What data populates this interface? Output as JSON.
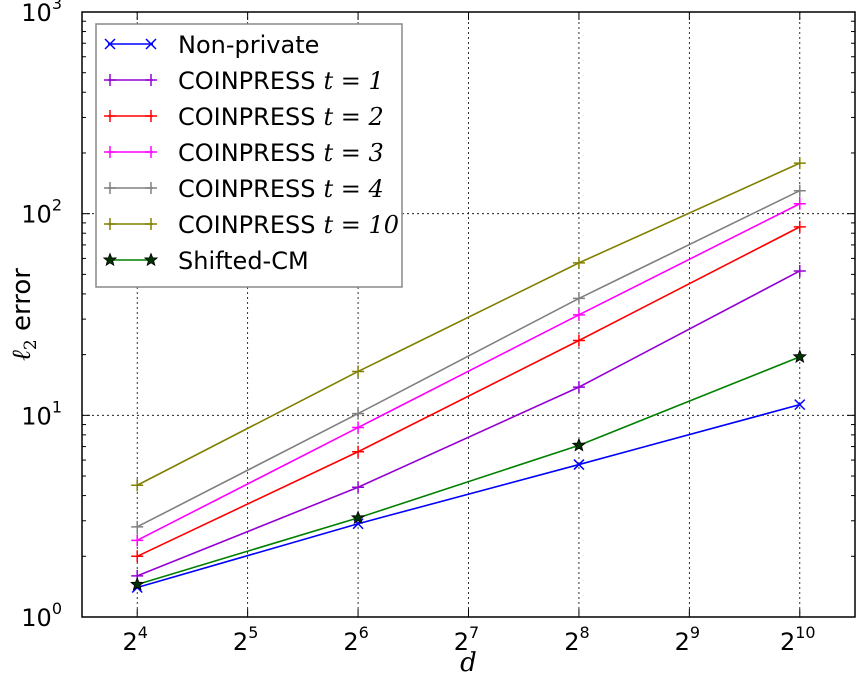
{
  "chart_data": {
    "type": "line",
    "xlabel": "d",
    "ylabel": "ℓ2 error",
    "xscale": "log2",
    "yscale": "log10",
    "xlim_exponent": [
      3.5,
      10.5
    ],
    "ylim": [
      1,
      1000
    ],
    "x": [
      16,
      64,
      256,
      1024
    ],
    "x_tick_base": "2",
    "x_tick_exponents": [
      "4",
      "5",
      "6",
      "7",
      "8",
      "9",
      "10"
    ],
    "y_tick_base": "10",
    "y_tick_exponents": [
      "0",
      "1",
      "2",
      "3"
    ],
    "grid": true,
    "legend_position": "top-left",
    "series": [
      {
        "name": "Non-private",
        "math": "",
        "color": "#0000ff",
        "marker": "x",
        "values": [
          1.4,
          2.9,
          5.7,
          11.3
        ]
      },
      {
        "name": "COINPRESS",
        "math": "t = 1",
        "color": "#9400d3",
        "marker": "+",
        "values": [
          1.6,
          4.4,
          13.8,
          52
        ]
      },
      {
        "name": "COINPRESS",
        "math": "t = 2",
        "color": "#ff0000",
        "marker": "+",
        "values": [
          2.0,
          6.6,
          23.5,
          86
        ]
      },
      {
        "name": "COINPRESS",
        "math": "t = 3",
        "color": "#ff00ff",
        "marker": "+",
        "values": [
          2.4,
          8.7,
          31.5,
          112
        ]
      },
      {
        "name": "COINPRESS",
        "math": "t = 4",
        "color": "#808080",
        "marker": "+",
        "values": [
          2.8,
          10.2,
          38,
          130
        ]
      },
      {
        "name": "COINPRESS",
        "math": "t = 10",
        "color": "#808000",
        "marker": "+",
        "values": [
          4.5,
          16.5,
          57,
          178
        ]
      },
      {
        "name": "Shifted-CM",
        "math": "",
        "color": "#008000",
        "marker": "star",
        "values": [
          1.45,
          3.1,
          7.1,
          19.5
        ]
      }
    ]
  }
}
